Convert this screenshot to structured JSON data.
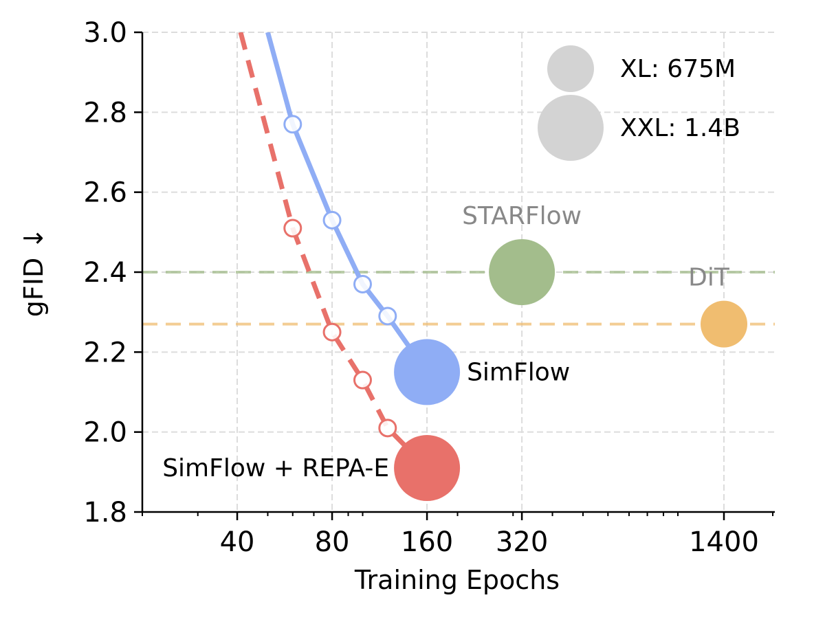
{
  "chart_data": {
    "type": "line",
    "xlabel": "Training Epochs",
    "ylabel": "gFID ↓",
    "xscale": "log",
    "xlim": [
      20,
      2030
    ],
    "ylim": [
      1.8,
      3.0
    ],
    "xticks": [
      40,
      80,
      160,
      320,
      1400
    ],
    "xtick_labels": [
      "40",
      "80",
      "160",
      "320",
      "1400"
    ],
    "yticks": [
      1.8,
      2.0,
      2.2,
      2.4,
      2.6,
      2.8,
      3.0
    ],
    "ytick_labels": [
      "1.8",
      "2.0",
      "2.2",
      "2.4",
      "2.6",
      "2.8",
      "3.0"
    ],
    "grid": true,
    "series": [
      {
        "name": "SimFlow",
        "color": "#8FADF5",
        "style": "solid",
        "x": [
          50,
          60,
          80,
          100,
          120,
          160
        ],
        "y": [
          3.0,
          2.77,
          2.53,
          2.37,
          2.29,
          2.15
        ],
        "final_point": {
          "x": 160,
          "y": 2.15,
          "size": "XXL"
        }
      },
      {
        "name": "SimFlow + REPA-E",
        "color": "#E8716A",
        "style": "dashed",
        "x": [
          41,
          60,
          80,
          100,
          120,
          160
        ],
        "y": [
          3.0,
          2.51,
          2.25,
          2.13,
          2.01,
          1.91
        ],
        "final_point": {
          "x": 160,
          "y": 1.91,
          "size": "XXL"
        }
      }
    ],
    "baselines": [
      {
        "name": "STARFlow",
        "x": 320,
        "y": 2.4,
        "size": "XXL",
        "color": "#A3BD8C"
      },
      {
        "name": "DiT",
        "x": 1400,
        "y": 2.27,
        "size": "XL",
        "color": "#F0BD70"
      }
    ],
    "legend": {
      "placement": "top-right",
      "entries": [
        {
          "label": "XL: 675M",
          "size": "XL"
        },
        {
          "label": "XXL: 1.4B",
          "size": "XXL"
        }
      ],
      "color": "#D3D3D3"
    }
  }
}
